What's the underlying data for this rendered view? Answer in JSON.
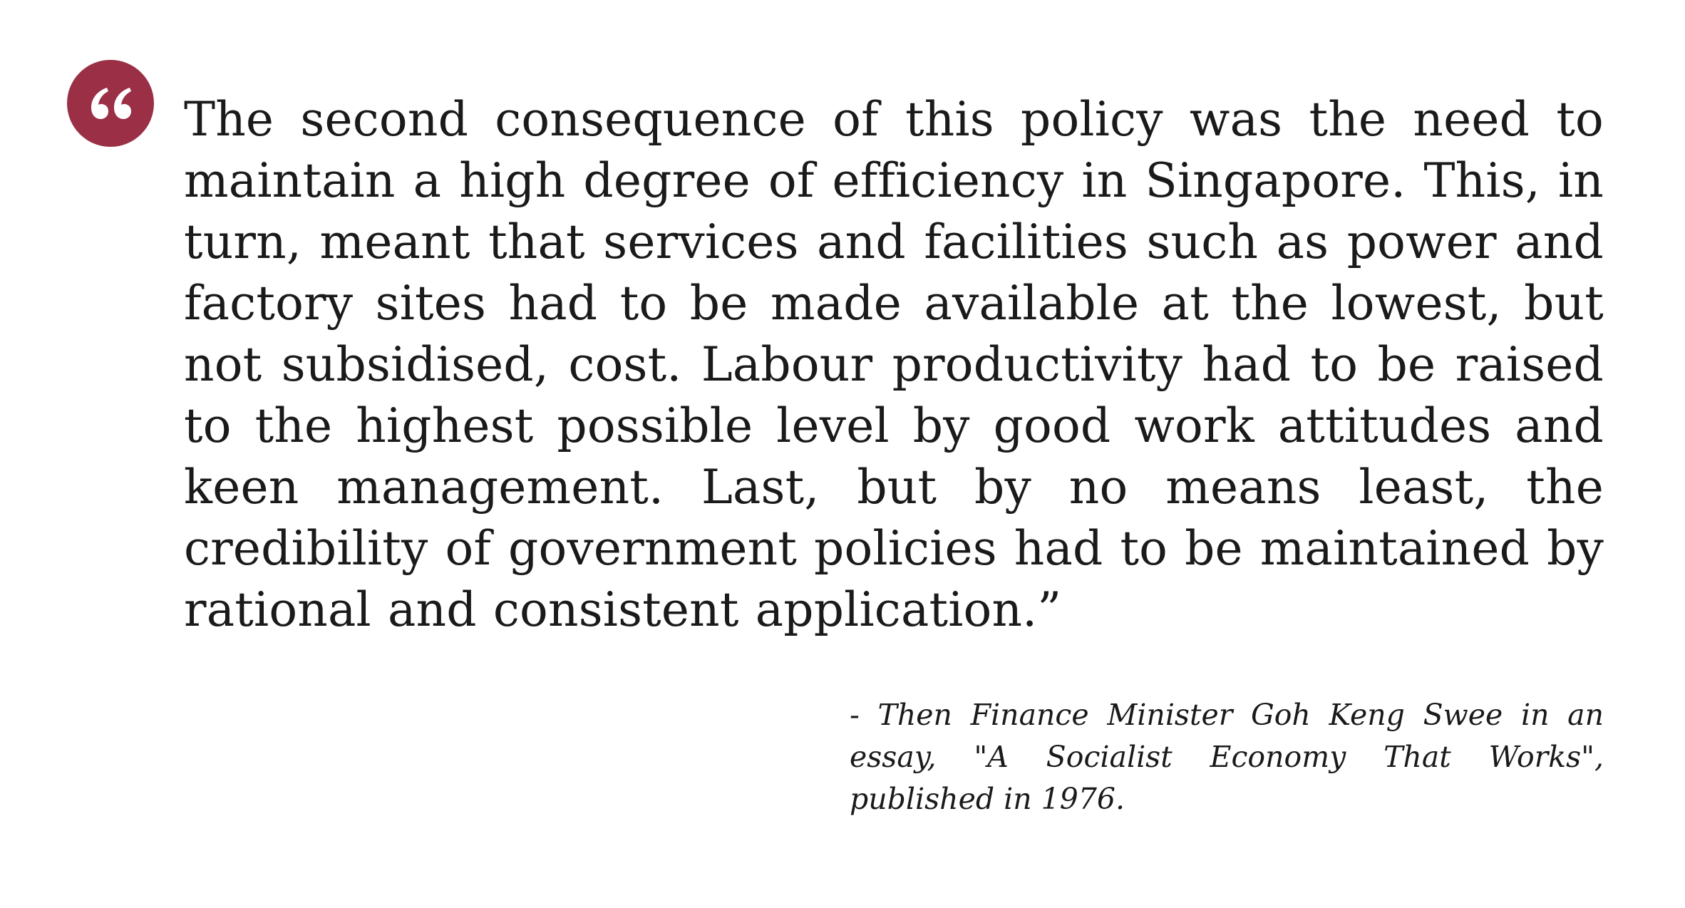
{
  "quote": {
    "icon": "quote-mark-icon",
    "accent_color": "#9b2f45",
    "text": "The second consequence of this policy was the need to maintain a high degree of efficiency in Singapore. This, in turn, meant that services and facilities such as power and factory sites had to be made available at the lowest, but not subsidised, cost. Labour productivity had to be raised to the highest possible level by good work attitudes and keen management. Last, but by no means least, the credibility of government policies had to be maintained by rational and consistent application.”",
    "attribution": "- Then Finance Minister Goh Keng Swee in an essay, \"A Socialist Economy That Works\", published in 1976."
  }
}
